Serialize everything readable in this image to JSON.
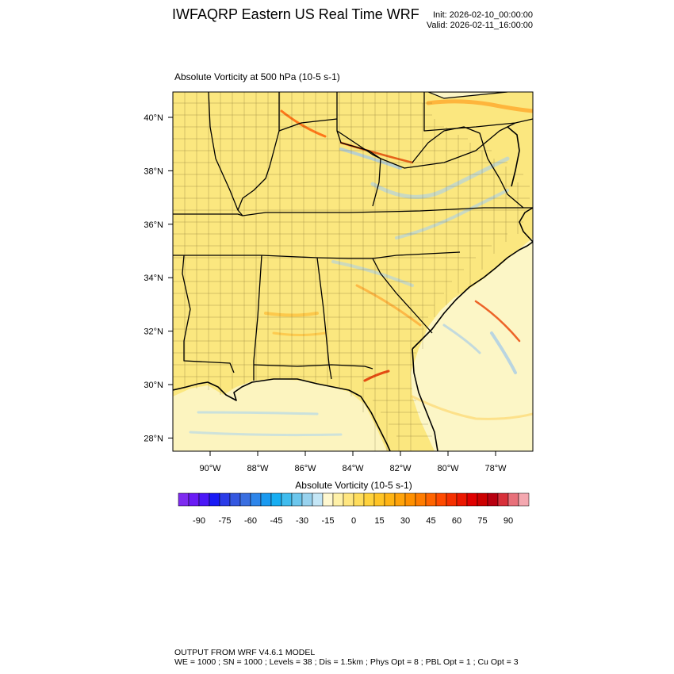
{
  "header": {
    "title": "IWFAQRP Eastern US Real Time WRF",
    "init": "Init: 2026-02-10_00:00:00",
    "valid": "Valid: 2026-02-11_16:00:00"
  },
  "map": {
    "field_title": "Absolute Vorticity at 500 hPa   (10-5 s-1)",
    "lat_labels": [
      "40°N",
      "38°N",
      "36°N",
      "34°N",
      "32°N",
      "30°N",
      "28°N"
    ],
    "lon_labels": [
      "90°W",
      "88°W",
      "86°W",
      "84°W",
      "82°W",
      "80°W",
      "78°W"
    ],
    "background_color": "#fbe77f",
    "ocean_color": "#fcf6c6"
  },
  "colorbar": {
    "title": "Absolute Vorticity  (10-5 s-1)",
    "tick_labels": [
      "-90",
      "-75",
      "-60",
      "-45",
      "-30",
      "-15",
      "0",
      "15",
      "30",
      "45",
      "60",
      "75",
      "90"
    ],
    "colors": [
      "#7e2bf0",
      "#6a1bf5",
      "#4b17f7",
      "#1a1af5",
      "#2b3ce8",
      "#3558e0",
      "#3a6fe0",
      "#2e86ea",
      "#1a9af0",
      "#18aef2",
      "#40bcee",
      "#6cc6ec",
      "#98d2ee",
      "#c4e6f6",
      "#fff8d0",
      "#fff1a8",
      "#ffe680",
      "#ffdd5c",
      "#ffd23c",
      "#ffc425",
      "#ffb414",
      "#ffa30a",
      "#ff9000",
      "#ff7c00",
      "#ff6400",
      "#ff4a00",
      "#f53000",
      "#ec1800",
      "#e00000",
      "#cc0000",
      "#b80010",
      "#d8303a",
      "#e8707a",
      "#f4a8b0"
    ]
  },
  "footer": {
    "line1": "OUTPUT FROM WRF V4.6.1 MODEL",
    "line2": "WE = 1000 ; SN = 1000 ; Levels = 38 ; Dis = 1.5km ; Phys Opt = 8 ; PBL Opt = 1 ; Cu Opt = 3"
  }
}
